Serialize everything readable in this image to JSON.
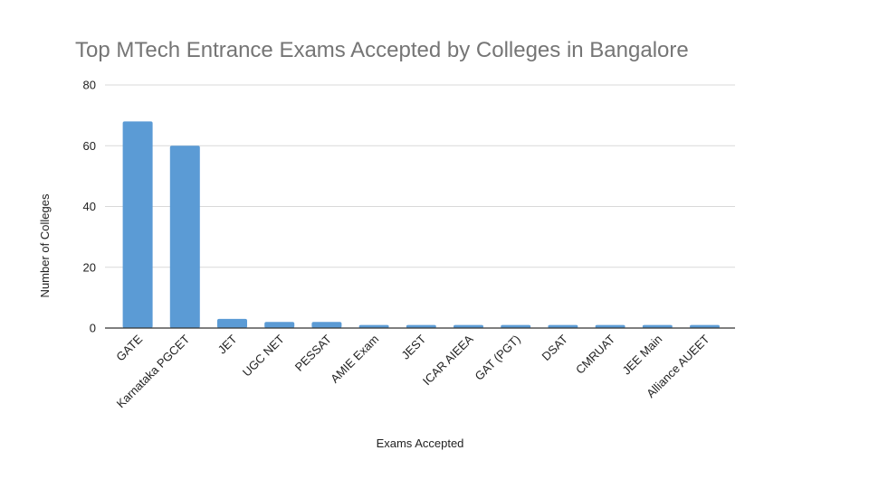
{
  "chart_data": {
    "type": "bar",
    "title": "Top MTech Entrance Exams Accepted by Colleges in Bangalore",
    "xlabel": "Exams Accepted",
    "ylabel": "Number of Colleges",
    "categories": [
      "GATE",
      "Karnataka PGCET",
      "JET",
      "UGC NET",
      "PESSAT",
      "AMIE Exam",
      "JEST",
      "ICAR AIEEA",
      "GAT (PGT)",
      "DSAT",
      "CMRUAT",
      "JEE Main",
      "Alliance AUEET"
    ],
    "values": [
      68,
      60,
      3,
      2,
      2,
      1,
      1,
      1,
      1,
      1,
      1,
      1,
      1
    ],
    "ylim": [
      0,
      80
    ],
    "yticks": [
      "0",
      "20",
      "40",
      "60",
      "80"
    ],
    "grid": true,
    "legend": "none",
    "bar_color": "#5b9bd5"
  }
}
